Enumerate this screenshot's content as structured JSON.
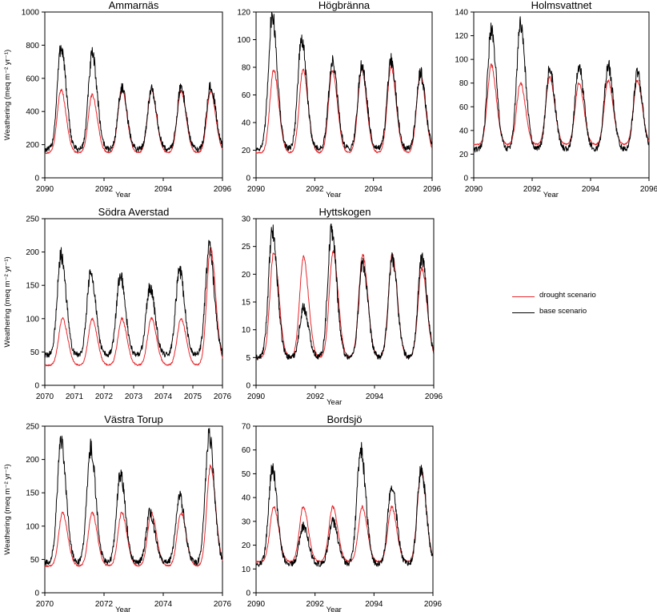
{
  "colors": {
    "drought": "#e8262b",
    "base": "#000000",
    "axis": "#000000"
  },
  "legend": {
    "position": "right",
    "items": [
      {
        "label": "drought scenario",
        "color": "#e8262b"
      },
      {
        "label": "base scenario",
        "color": "#000000"
      }
    ]
  },
  "chart_data": [
    {
      "type": "line",
      "title": "Ammarnäs",
      "xlabel": "Year",
      "ylabel": "Weathering (meq m⁻² yr⁻¹)",
      "xlim": [
        2090,
        2096
      ],
      "ylim": [
        0,
        1000
      ],
      "x_ticks": [
        "2090",
        "2092",
        "2094",
        "2096"
      ],
      "x_tick_values": [
        2090,
        2092,
        2094,
        2096
      ],
      "y_ticks": [
        "0",
        "200",
        "400",
        "600",
        "800",
        "1000"
      ],
      "y_tick_values": [
        0,
        200,
        400,
        600,
        800,
        1000
      ],
      "series": [
        {
          "name": "drought scenario",
          "color": "#e8262b",
          "peaks": [
            {
              "x": 2090.55,
              "y": 530
            },
            {
              "x": 2091.6,
              "y": 500
            },
            {
              "x": 2092.6,
              "y": 540
            },
            {
              "x": 2093.6,
              "y": 530
            },
            {
              "x": 2094.6,
              "y": 520
            },
            {
              "x": 2095.6,
              "y": 520
            }
          ],
          "baseline": 150
        },
        {
          "name": "base scenario",
          "color": "#000000",
          "peaks": [
            {
              "x": 2090.55,
              "y": 790
            },
            {
              "x": 2091.6,
              "y": 740
            },
            {
              "x": 2092.6,
              "y": 540
            },
            {
              "x": 2093.6,
              "y": 530
            },
            {
              "x": 2094.6,
              "y": 545
            },
            {
              "x": 2095.6,
              "y": 560
            }
          ],
          "baseline": 170
        }
      ]
    },
    {
      "type": "line",
      "title": "Högbränna",
      "xlabel": "Year",
      "ylabel": "",
      "xlim": [
        2090,
        2096
      ],
      "ylim": [
        0,
        120
      ],
      "x_ticks": [
        "2090",
        "2092",
        "2094",
        "2096"
      ],
      "x_tick_values": [
        2090,
        2092,
        2094,
        2096
      ],
      "y_ticks": [
        "0",
        "20",
        "40",
        "60",
        "80",
        "100",
        "120"
      ],
      "y_tick_values": [
        0,
        20,
        40,
        60,
        80,
        100,
        120
      ],
      "series": [
        {
          "name": "drought scenario",
          "color": "#e8262b",
          "peaks": [
            {
              "x": 2090.6,
              "y": 78
            },
            {
              "x": 2091.6,
              "y": 78
            },
            {
              "x": 2092.6,
              "y": 78
            },
            {
              "x": 2093.6,
              "y": 78
            },
            {
              "x": 2094.6,
              "y": 80
            },
            {
              "x": 2095.6,
              "y": 75
            }
          ],
          "baseline": 18
        },
        {
          "name": "base scenario",
          "color": "#000000",
          "peaks": [
            {
              "x": 2090.55,
              "y": 118
            },
            {
              "x": 2091.55,
              "y": 100
            },
            {
              "x": 2092.6,
              "y": 84
            },
            {
              "x": 2093.6,
              "y": 82
            },
            {
              "x": 2094.6,
              "y": 85
            },
            {
              "x": 2095.6,
              "y": 76
            }
          ],
          "baseline": 21
        }
      ]
    },
    {
      "type": "line",
      "title": "Holmsvattnet",
      "xlabel": "Year",
      "ylabel": "",
      "xlim": [
        2090,
        2096
      ],
      "ylim": [
        0,
        140
      ],
      "x_ticks": [
        "2090",
        "2092",
        "2094",
        "2096"
      ],
      "x_tick_values": [
        2090,
        2092,
        2094,
        2096
      ],
      "y_ticks": [
        "0",
        "20",
        "40",
        "60",
        "80",
        "100",
        "120",
        "140"
      ],
      "y_tick_values": [
        0,
        20,
        40,
        60,
        80,
        100,
        120,
        140
      ],
      "series": [
        {
          "name": "drought scenario",
          "color": "#e8262b",
          "peaks": [
            {
              "x": 2090.6,
              "y": 95
            },
            {
              "x": 2091.6,
              "y": 80
            },
            {
              "x": 2092.6,
              "y": 85
            },
            {
              "x": 2093.6,
              "y": 80
            },
            {
              "x": 2094.6,
              "y": 82
            },
            {
              "x": 2095.6,
              "y": 82
            }
          ],
          "baseline": 28
        },
        {
          "name": "base scenario",
          "color": "#000000",
          "peaks": [
            {
              "x": 2090.6,
              "y": 125
            },
            {
              "x": 2091.6,
              "y": 129
            },
            {
              "x": 2092.6,
              "y": 92
            },
            {
              "x": 2093.6,
              "y": 94
            },
            {
              "x": 2094.6,
              "y": 95
            },
            {
              "x": 2095.6,
              "y": 88
            }
          ],
          "baseline": 24
        }
      ]
    },
    {
      "type": "line",
      "title": "Södra Averstad",
      "xlabel": "",
      "ylabel": "Weathering (meq m⁻² yr⁻¹)",
      "xlim": [
        2070,
        2076
      ],
      "ylim": [
        0,
        250
      ],
      "x_ticks": [
        "2070",
        "2071",
        "2072",
        "2073",
        "2074",
        "2075",
        "2076"
      ],
      "x_tick_values": [
        2070,
        2071,
        2072,
        2073,
        2074,
        2075,
        2076
      ],
      "y_ticks": [
        "0",
        "50",
        "100",
        "150",
        "200",
        "250"
      ],
      "y_tick_values": [
        0,
        50,
        100,
        150,
        200,
        250
      ],
      "series": [
        {
          "name": "drought scenario",
          "color": "#e8262b",
          "peaks": [
            {
              "x": 2070.6,
              "y": 100
            },
            {
              "x": 2071.6,
              "y": 100
            },
            {
              "x": 2072.6,
              "y": 100
            },
            {
              "x": 2073.6,
              "y": 100
            },
            {
              "x": 2074.6,
              "y": 100
            },
            {
              "x": 2075.6,
              "y": 205
            }
          ],
          "baseline": 30
        },
        {
          "name": "base scenario",
          "color": "#000000",
          "peaks": [
            {
              "x": 2070.55,
              "y": 195
            },
            {
              "x": 2071.55,
              "y": 168
            },
            {
              "x": 2072.55,
              "y": 165
            },
            {
              "x": 2073.55,
              "y": 148
            },
            {
              "x": 2074.55,
              "y": 172
            },
            {
              "x": 2075.55,
              "y": 206
            }
          ],
          "baseline": 45
        }
      ]
    },
    {
      "type": "line",
      "title": "Hyttskogen",
      "xlabel": "Year",
      "ylabel": "",
      "xlim": [
        2090,
        2096
      ],
      "ylim": [
        0,
        30
      ],
      "x_ticks": [
        "2090",
        "2092",
        "2094",
        "2096"
      ],
      "x_tick_values": [
        2090,
        2092,
        2094,
        2096
      ],
      "y_ticks": [
        "0",
        "5",
        "10",
        "15",
        "20",
        "25",
        "30"
      ],
      "y_tick_values": [
        0,
        5,
        10,
        15,
        20,
        25,
        30
      ],
      "series": [
        {
          "name": "drought scenario",
          "color": "#e8262b",
          "peaks": [
            {
              "x": 2090.6,
              "y": 24
            },
            {
              "x": 2091.6,
              "y": 23
            },
            {
              "x": 2092.6,
              "y": 24
            },
            {
              "x": 2093.6,
              "y": 23.5
            },
            {
              "x": 2094.6,
              "y": 23.5
            },
            {
              "x": 2095.6,
              "y": 21
            }
          ],
          "baseline": 5
        },
        {
          "name": "base scenario",
          "color": "#000000",
          "peaks": [
            {
              "x": 2090.55,
              "y": 27.5
            },
            {
              "x": 2091.6,
              "y": 14
            },
            {
              "x": 2092.55,
              "y": 28
            },
            {
              "x": 2093.6,
              "y": 22
            },
            {
              "x": 2094.6,
              "y": 23
            },
            {
              "x": 2095.6,
              "y": 23
            }
          ],
          "baseline": 5
        }
      ]
    },
    {
      "type": "line",
      "title": "Västra Torup",
      "xlabel": "Year",
      "ylabel": "Weathering (meq m⁻² yr⁻¹)",
      "xlim": [
        2070,
        2076
      ],
      "ylim": [
        0,
        250
      ],
      "x_ticks": [
        "2070",
        "2072",
        "2074",
        "2076"
      ],
      "x_tick_values": [
        2070,
        2072,
        2074,
        2076
      ],
      "y_ticks": [
        "0",
        "50",
        "100",
        "150",
        "200",
        "250"
      ],
      "y_tick_values": [
        0,
        50,
        100,
        150,
        200,
        250
      ],
      "series": [
        {
          "name": "drought scenario",
          "color": "#e8262b",
          "peaks": [
            {
              "x": 2070.6,
              "y": 120
            },
            {
              "x": 2071.6,
              "y": 120
            },
            {
              "x": 2072.6,
              "y": 120
            },
            {
              "x": 2073.6,
              "y": 120
            },
            {
              "x": 2074.6,
              "y": 120
            },
            {
              "x": 2075.6,
              "y": 190
            }
          ],
          "baseline": 40
        },
        {
          "name": "base scenario",
          "color": "#000000",
          "peaks": [
            {
              "x": 2070.55,
              "y": 225
            },
            {
              "x": 2071.55,
              "y": 218
            },
            {
              "x": 2072.55,
              "y": 178
            },
            {
              "x": 2073.55,
              "y": 120
            },
            {
              "x": 2074.55,
              "y": 145
            },
            {
              "x": 2075.55,
              "y": 235
            }
          ],
          "baseline": 45
        }
      ]
    },
    {
      "type": "line",
      "title": "Bordsjö",
      "xlabel": "Year",
      "ylabel": "",
      "xlim": [
        2090,
        2096
      ],
      "ylim": [
        0,
        70
      ],
      "x_ticks": [
        "2090",
        "2092",
        "2094",
        "2096"
      ],
      "x_tick_values": [
        2090,
        2092,
        2094,
        2096
      ],
      "y_ticks": [
        "0",
        "10",
        "20",
        "30",
        "40",
        "50",
        "60",
        "70"
      ],
      "y_tick_values": [
        0,
        10,
        20,
        30,
        40,
        50,
        60,
        70
      ],
      "series": [
        {
          "name": "drought scenario",
          "color": "#e8262b",
          "peaks": [
            {
              "x": 2090.6,
              "y": 36
            },
            {
              "x": 2091.6,
              "y": 36
            },
            {
              "x": 2092.6,
              "y": 36
            },
            {
              "x": 2093.6,
              "y": 36
            },
            {
              "x": 2094.6,
              "y": 36
            },
            {
              "x": 2095.6,
              "y": 51
            }
          ],
          "baseline": 13
        },
        {
          "name": "base scenario",
          "color": "#000000",
          "peaks": [
            {
              "x": 2090.55,
              "y": 52
            },
            {
              "x": 2091.6,
              "y": 28
            },
            {
              "x": 2092.6,
              "y": 30
            },
            {
              "x": 2093.55,
              "y": 60
            },
            {
              "x": 2094.6,
              "y": 45
            },
            {
              "x": 2095.6,
              "y": 52
            }
          ],
          "baseline": 12
        }
      ]
    }
  ]
}
